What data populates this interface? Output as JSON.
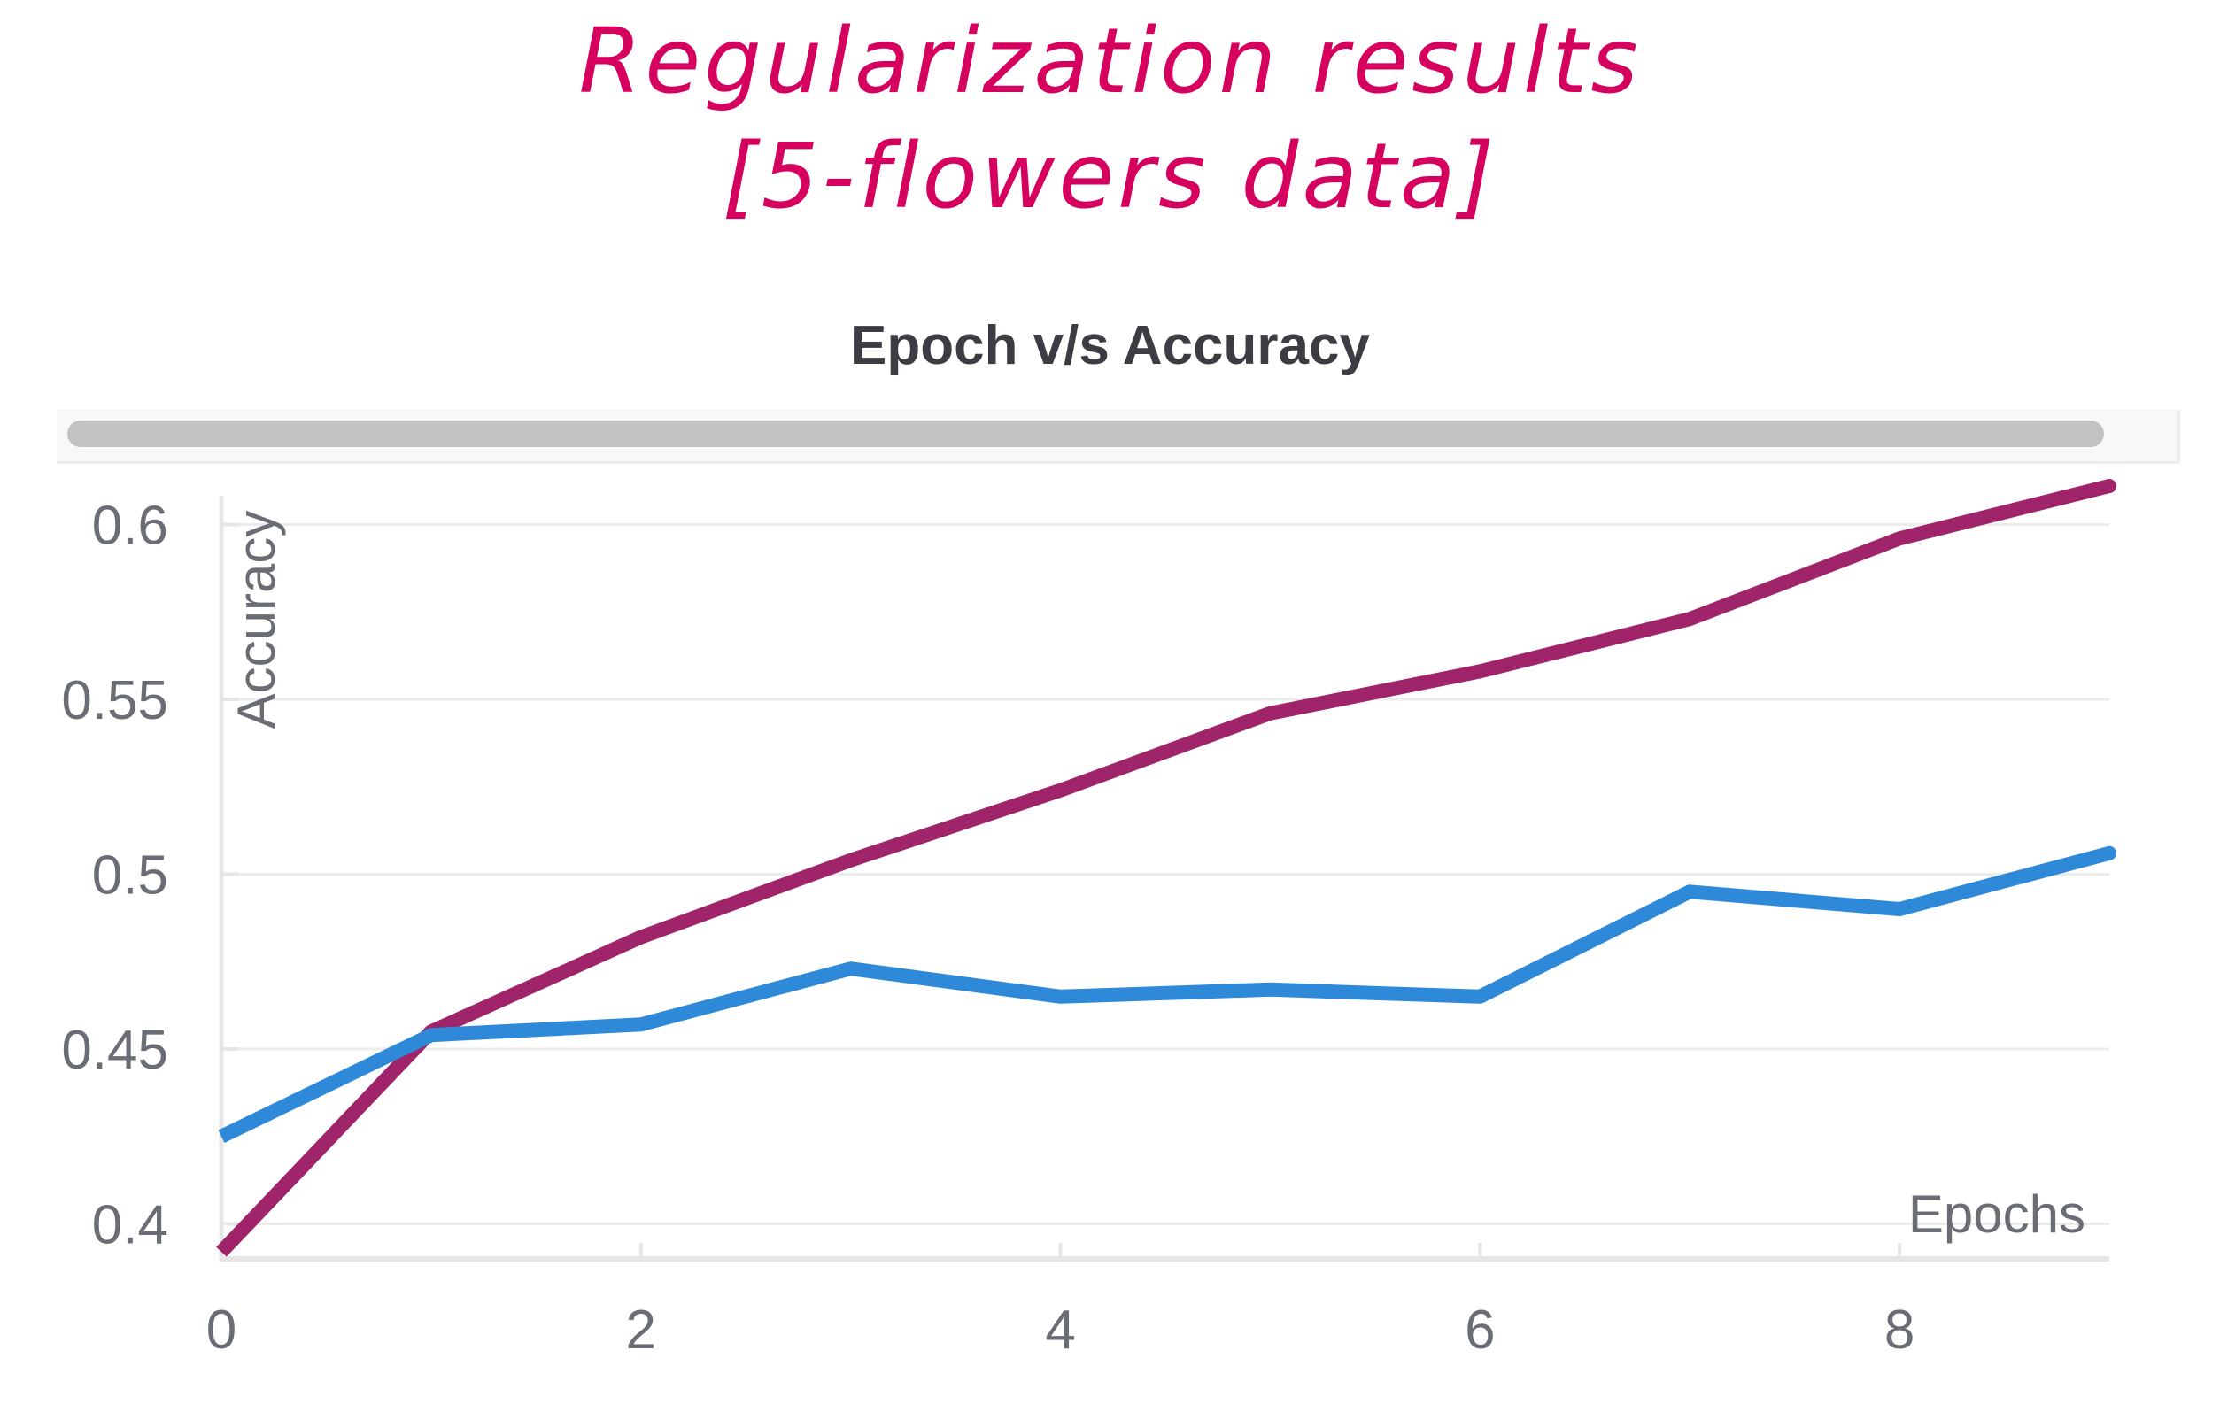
{
  "header": {
    "line1": "Regularization results",
    "line2": "[5-flowers data]"
  },
  "chart_data": {
    "type": "line",
    "title": "Epoch v/s Accuracy",
    "xlabel": "Epochs",
    "ylabel": "Accuracy",
    "xlim": [
      0,
      9
    ],
    "ylim": [
      0.39,
      0.61
    ],
    "xticks": [
      0,
      2,
      4,
      6,
      8
    ],
    "yticks": [
      0.4,
      0.45,
      0.5,
      0.55,
      0.6
    ],
    "ytick_labels": [
      "0.4",
      "0.45",
      "0.5",
      "0.55",
      "0.6"
    ],
    "grid": "horizontal",
    "series": [
      {
        "color": "#a0246a",
        "x": [
          0,
          1,
          2,
          3,
          4,
          5,
          6,
          7,
          8,
          9
        ],
        "values": [
          0.392,
          0.455,
          0.482,
          0.504,
          0.524,
          0.546,
          0.558,
          0.573,
          0.596,
          0.611
        ]
      },
      {
        "color": "#2f89d9",
        "x": [
          0,
          1,
          2,
          3,
          4,
          5,
          6,
          7,
          8,
          9
        ],
        "values": [
          0.425,
          0.454,
          0.457,
          0.473,
          0.465,
          0.467,
          0.465,
          0.495,
          0.49,
          0.506
        ]
      }
    ]
  }
}
